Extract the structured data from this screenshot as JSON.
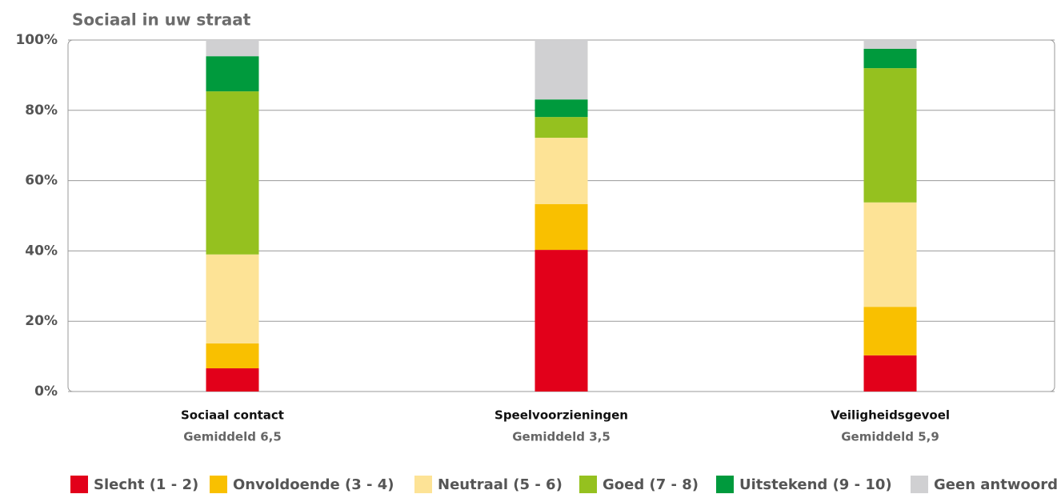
{
  "chart_data": {
    "type": "stacked_bar",
    "title": "Sociaal in uw straat",
    "categories": [
      "Sociaal contact",
      "Speelvoorzieningen",
      "Veiligheidsgevoel"
    ],
    "category_notes": [
      "Gemiddeld 6,5",
      "Gemiddeld 3,5",
      "Gemiddeld 5,9"
    ],
    "series": [
      {
        "name": "Slecht (1 - 2)",
        "color": "#e2001a",
        "values": [
          6.6,
          40.3,
          10.3
        ]
      },
      {
        "name": "Onvoldoende (3 - 4)",
        "color": "#f9c000",
        "values": [
          7.1,
          13.0,
          13.8
        ]
      },
      {
        "name": "Neutraal (5 - 6)",
        "color": "#fde396",
        "values": [
          25.3,
          18.9,
          29.7
        ]
      },
      {
        "name": "Goed (7 - 8)",
        "color": "#95c11f",
        "values": [
          46.4,
          5.9,
          38.2
        ]
      },
      {
        "name": "Uitstekend (9 - 10)",
        "color": "#009a3d",
        "values": [
          10.0,
          5.0,
          5.5
        ]
      },
      {
        "name": "Geen antwoord",
        "color": "#d0d0d2",
        "values": [
          4.6,
          16.9,
          2.5
        ]
      }
    ],
    "ylim": [
      0,
      100
    ],
    "yticks": [
      {
        "value": 0,
        "label": "0%"
      },
      {
        "value": 20,
        "label": "20%"
      },
      {
        "value": 40,
        "label": "40%"
      },
      {
        "value": 60,
        "label": "60%"
      },
      {
        "value": 80,
        "label": "80%"
      },
      {
        "value": 100,
        "label": "100%"
      }
    ],
    "grid": true,
    "legend": "bottom"
  }
}
